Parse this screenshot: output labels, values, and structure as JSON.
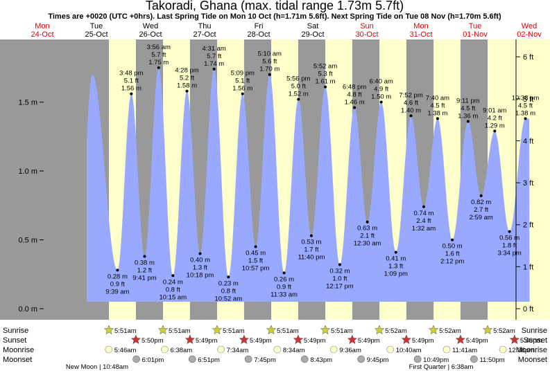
{
  "chart_data": {
    "type": "area",
    "title": "Takoradi, Ghana (max. tidal range 1.73m 5.7ft)",
    "subtitle": "Times are +0020 (UTC +0hrs). Last Spring Tide on Mon 10 Oct (h=1.71m 5.6ft). Next Spring Tide on Tue 08 Nov (h=1.70m 5.6ft)",
    "left_axis": {
      "unit": "m",
      "ticks": [
        "0.0 m",
        "0.5 m",
        "1.0 m",
        "1.5 m"
      ],
      "values": [
        0,
        0.5,
        1.0,
        1.5
      ],
      "ylim": [
        -0.08,
        1.98
      ]
    },
    "right_axis": {
      "unit": "ft",
      "ticks": [
        "0 ft",
        "1 ft",
        "2 ft",
        "3 ft",
        "4 ft",
        "5 ft",
        "6 ft"
      ],
      "values": [
        0,
        1,
        2,
        3,
        4,
        5,
        6
      ]
    },
    "days": [
      {
        "name": "Mon",
        "date": "24-Oct",
        "red": true
      },
      {
        "name": "Tue",
        "date": "25-Oct",
        "red": false
      },
      {
        "name": "Wed",
        "date": "26-Oct",
        "red": false
      },
      {
        "name": "Thu",
        "date": "27-Oct",
        "red": false
      },
      {
        "name": "Fri",
        "date": "28-Oct",
        "red": false
      },
      {
        "name": "Sat",
        "date": "29-Oct",
        "red": false
      },
      {
        "name": "Sun",
        "date": "30-Oct",
        "red": true
      },
      {
        "name": "Mon",
        "date": "31-Oct",
        "red": true
      },
      {
        "name": "Tue",
        "date": "01-Nov",
        "red": true
      },
      {
        "name": "Wed",
        "date": "02-Nov",
        "red": true
      }
    ],
    "tides": [
      {
        "day": 0,
        "hour": 22.5,
        "m": 1.7,
        "type": "high"
      },
      {
        "day": 1,
        "hour": 9.65,
        "m": 0.28,
        "ft": "0.9 ft",
        "time": "9:39 am",
        "type": "low"
      },
      {
        "day": 1,
        "hour": 15.8,
        "m": 1.56,
        "ft": "5.1 ft",
        "time": "3:48 pm",
        "type": "high"
      },
      {
        "day": 1,
        "hour": 21.68,
        "m": 0.38,
        "ft": "1.2 ft",
        "time": "9:41 pm",
        "type": "low"
      },
      {
        "day": 2,
        "hour": 3.93,
        "m": 1.75,
        "ft": "5.7 ft",
        "time": "3:56 am",
        "type": "high"
      },
      {
        "day": 2,
        "hour": 10.25,
        "m": 0.24,
        "ft": "0.8 ft",
        "time": "10:15 am",
        "type": "low"
      },
      {
        "day": 2,
        "hour": 16.47,
        "m": 1.58,
        "ft": "5.2 ft",
        "time": "4:28 pm",
        "type": "high"
      },
      {
        "day": 2,
        "hour": 22.3,
        "m": 0.4,
        "ft": "1.3 ft",
        "time": "10:18 pm",
        "type": "low"
      },
      {
        "day": 3,
        "hour": 4.52,
        "m": 1.74,
        "ft": "5.7 ft",
        "time": "4:31 am",
        "type": "high"
      },
      {
        "day": 3,
        "hour": 10.87,
        "m": 0.23,
        "ft": "0.8 ft",
        "time": "10:52 am",
        "type": "low"
      },
      {
        "day": 3,
        "hour": 17.15,
        "m": 1.56,
        "ft": "5.1 ft",
        "time": "5:09 pm",
        "type": "high"
      },
      {
        "day": 3,
        "hour": 22.95,
        "m": 0.45,
        "ft": "1.5 ft",
        "time": "10:57 pm",
        "type": "low"
      },
      {
        "day": 4,
        "hour": 5.17,
        "m": 1.7,
        "ft": "5.6 ft",
        "time": "5:10 am",
        "type": "high"
      },
      {
        "day": 4,
        "hour": 11.55,
        "m": 0.26,
        "ft": "0.9 ft",
        "time": "11:33 am",
        "type": "low"
      },
      {
        "day": 4,
        "hour": 17.93,
        "m": 1.52,
        "ft": "5.0 ft",
        "time": "5:56 pm",
        "type": "high"
      },
      {
        "day": 4,
        "hour": 23.67,
        "m": 0.53,
        "ft": "1.7 ft",
        "time": "11:40 pm",
        "type": "low"
      },
      {
        "day": 5,
        "hour": 5.87,
        "m": 1.61,
        "ft": "5.3 ft",
        "time": "5:52 am",
        "type": "high"
      },
      {
        "day": 5,
        "hour": 12.28,
        "m": 0.32,
        "ft": "1.0 ft",
        "time": "12:17 pm",
        "type": "low"
      },
      {
        "day": 5,
        "hour": 18.8,
        "m": 1.46,
        "ft": "4.8 ft",
        "time": "6:48 pm",
        "type": "high"
      },
      {
        "day": 6,
        "hour": 0.5,
        "m": 0.63,
        "ft": "2.1 ft",
        "time": "12:30 am",
        "type": "low"
      },
      {
        "day": 6,
        "hour": 6.67,
        "m": 1.5,
        "ft": "4.9 ft",
        "time": "6:40 am",
        "type": "high"
      },
      {
        "day": 6,
        "hour": 13.15,
        "m": 0.41,
        "ft": "1.3 ft",
        "time": "1:09 pm",
        "type": "low"
      },
      {
        "day": 6,
        "hour": 19.87,
        "m": 1.4,
        "ft": "4.6 ft",
        "time": "7:52 pm",
        "type": "high"
      },
      {
        "day": 7,
        "hour": 1.53,
        "m": 0.74,
        "ft": "2.4 ft",
        "time": "1:32 am",
        "type": "low"
      },
      {
        "day": 7,
        "hour": 7.67,
        "m": 1.38,
        "ft": "4.5 ft",
        "time": "7:40 am",
        "type": "high"
      },
      {
        "day": 7,
        "hour": 14.2,
        "m": 0.5,
        "ft": "1.6 ft",
        "time": "2:12 pm",
        "type": "low"
      },
      {
        "day": 7,
        "hour": 21.18,
        "m": 1.36,
        "ft": "4.5 ft",
        "time": "9:11 pm",
        "type": "high"
      },
      {
        "day": 8,
        "hour": 2.98,
        "m": 0.82,
        "ft": "2.7 ft",
        "time": "2:59 am",
        "type": "low"
      },
      {
        "day": 8,
        "hour": 9.02,
        "m": 1.29,
        "ft": "4.2 ft",
        "time": "9:01 am",
        "type": "high"
      },
      {
        "day": 8,
        "hour": 15.57,
        "m": 0.56,
        "ft": "1.8 ft",
        "time": "3:34 pm",
        "type": "low"
      },
      {
        "day": 8,
        "hour": 22.63,
        "m": 1.38,
        "ft": "4.5 ft",
        "time": "10:38 pm",
        "type": "high"
      }
    ],
    "sunrise": [
      {
        "day": 1,
        "hour": 5.85,
        "time": "5:51am"
      },
      {
        "day": 2,
        "hour": 5.85,
        "time": "5:51am"
      },
      {
        "day": 3,
        "hour": 5.85,
        "time": "5:51am"
      },
      {
        "day": 4,
        "hour": 5.85,
        "time": "5:51am"
      },
      {
        "day": 5,
        "hour": 5.85,
        "time": "5:51am"
      },
      {
        "day": 6,
        "hour": 5.87,
        "time": "5:52am"
      },
      {
        "day": 7,
        "hour": 5.87,
        "time": "5:52am"
      },
      {
        "day": 8,
        "hour": 5.87,
        "time": "5:52am"
      }
    ],
    "sunset": [
      {
        "day": 1,
        "hour": 17.83,
        "time": "5:50pm"
      },
      {
        "day": 2,
        "hour": 17.82,
        "time": "5:49pm"
      },
      {
        "day": 3,
        "hour": 17.82,
        "time": "5:49pm"
      },
      {
        "day": 4,
        "hour": 17.82,
        "time": "5:49pm"
      },
      {
        "day": 5,
        "hour": 17.82,
        "time": "5:49pm"
      },
      {
        "day": 6,
        "hour": 17.82,
        "time": "5:49pm"
      },
      {
        "day": 7,
        "hour": 17.82,
        "time": "5:49pm"
      },
      {
        "day": 8,
        "hour": 17.8,
        "time": "5:48pm"
      }
    ],
    "moonrise": [
      {
        "day": 1,
        "hour": 5.77,
        "time": "5:46am"
      },
      {
        "day": 2,
        "hour": 6.63,
        "time": "6:38am"
      },
      {
        "day": 3,
        "hour": 7.57,
        "time": "7:34am"
      },
      {
        "day": 4,
        "hour": 8.57,
        "time": "8:34am"
      },
      {
        "day": 5,
        "hour": 9.6,
        "time": "9:36am"
      },
      {
        "day": 6,
        "hour": 10.67,
        "time": "10:40am"
      },
      {
        "day": 7,
        "hour": 11.68,
        "time": "11:41am"
      },
      {
        "day": 8,
        "hour": 12.63,
        "time": "12:38pm"
      }
    ],
    "moonset": [
      {
        "day": 1,
        "hour": 18.02,
        "time": "6:01pm"
      },
      {
        "day": 2,
        "hour": 18.85,
        "time": "6:51pm"
      },
      {
        "day": 3,
        "hour": 19.75,
        "time": "7:45pm"
      },
      {
        "day": 4,
        "hour": 20.72,
        "time": "8:43pm"
      },
      {
        "day": 5,
        "hour": 21.75,
        "time": "9:45pm"
      },
      {
        "day": 6,
        "hour": 22.82,
        "time": "10:49pm"
      },
      {
        "day": 7,
        "hour": 23.83,
        "time": "11:50pm"
      }
    ],
    "row_labels": [
      "Sunrise",
      "Sunset",
      "Moonrise",
      "Moonset"
    ],
    "moon_phases": [
      {
        "label": "New Moon",
        "time": "10:48am"
      },
      {
        "label": "First Quarter",
        "time": "6:38am"
      }
    ],
    "colors": {
      "night": "#999999",
      "day": "#ffffcc",
      "water": "#99a9ff",
      "dayname": "#dd0000",
      "sun_star": "#cccc33",
      "sunset_star": "#cc3333",
      "moonrise": "#ffffcc",
      "moonset": "#aaaaaa"
    }
  }
}
